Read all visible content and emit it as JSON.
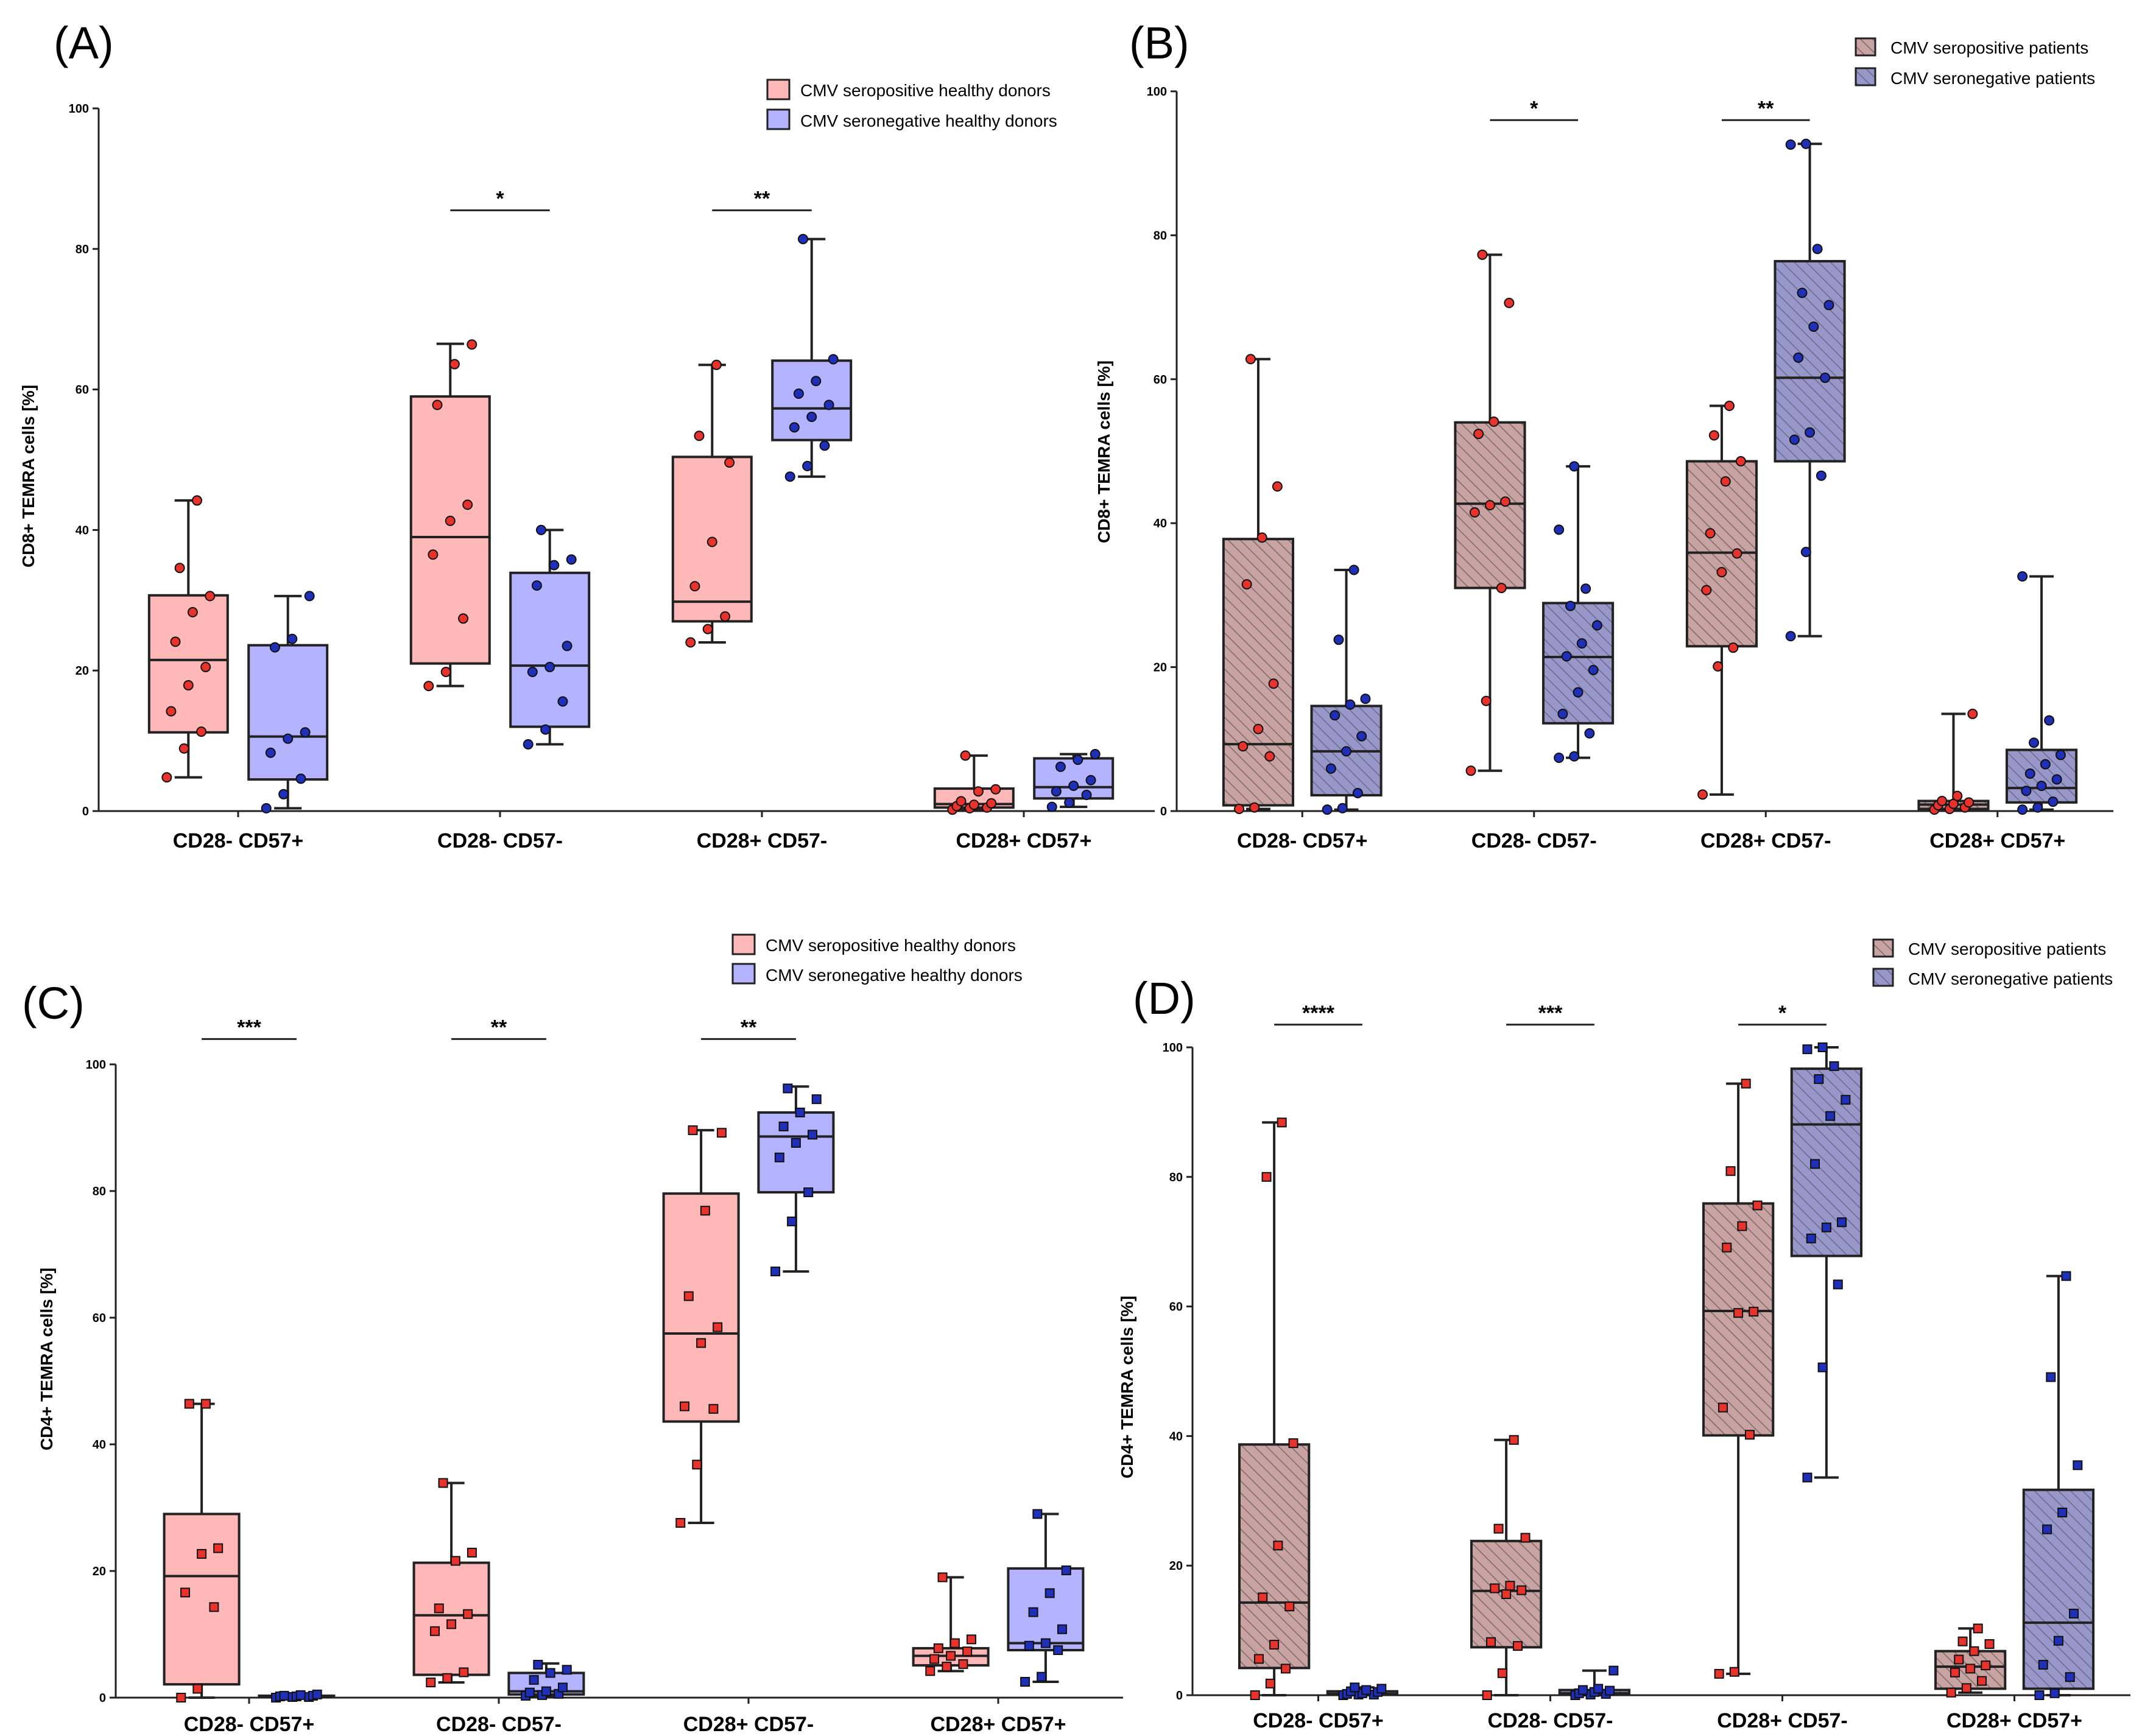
{
  "figure": {
    "colors": {
      "pos_fill": "#ffb8b8",
      "neg_fill": "#b3b3ff",
      "pos_fill_hatched": "#c9a2a2",
      "neg_fill_hatched": "#9797c9",
      "hatch_line": "#7a6a6a",
      "pos_point": "#e8322c",
      "neg_point": "#1f2fb8",
      "line": "#222222"
    }
  },
  "chart_data": [
    {
      "panel": "(A)",
      "type": "box",
      "ylabel": "CD8+ TEMRA cells [%]",
      "ylim": [
        0,
        100
      ],
      "yticks": [
        "0",
        "20",
        "40",
        "60",
        "80",
        "100"
      ],
      "categories": [
        "CD28- CD57+",
        "CD28- CD57-",
        "CD28+ CD57-",
        "CD28+ CD57+"
      ],
      "hatched": false,
      "marker": "circle",
      "legend": [
        "CMV seropositive healthy donors",
        "CMV seronegative healthy donors"
      ],
      "series": [
        {
          "name": "CMV seropositive healthy donors",
          "boxes": [
            {
              "min": 4.8,
              "q1": 11.2,
              "median": 21.5,
              "q3": 30.7,
              "max": 44.2,
              "points": [
                4.8,
                8.9,
                11.3,
                14.2,
                17.9,
                20.5,
                24.1,
                28.3,
                30.6,
                34.6,
                44.2
              ]
            },
            {
              "min": 17.8,
              "q1": 21.0,
              "median": 39.0,
              "q3": 59.0,
              "max": 66.5,
              "points": [
                17.8,
                19.8,
                27.4,
                36.5,
                41.3,
                43.6,
                57.8,
                63.6,
                66.4
              ]
            },
            {
              "min": 24.0,
              "q1": 27.0,
              "median": 29.8,
              "q3": 50.4,
              "max": 63.5,
              "points": [
                24.0,
                25.9,
                27.7,
                32.0,
                38.3,
                49.6,
                53.4,
                63.5
              ]
            },
            {
              "min": 0.2,
              "q1": 0.5,
              "median": 1.0,
              "q3": 3.2,
              "max": 7.9,
              "points": [
                0.2,
                0.4,
                0.5,
                0.7,
                0.9,
                1.1,
                1.4,
                2.8,
                3.1,
                7.9
              ]
            }
          ]
        },
        {
          "name": "CMV seronegative healthy donors",
          "boxes": [
            {
              "min": 0.4,
              "q1": 4.5,
              "median": 10.6,
              "q3": 23.6,
              "max": 30.6,
              "points": [
                0.4,
                2.4,
                4.6,
                8.3,
                10.3,
                11.2,
                23.3,
                24.5,
                30.6
              ]
            },
            {
              "min": 9.5,
              "q1": 12.0,
              "median": 20.7,
              "q3": 33.9,
              "max": 40.0,
              "points": [
                9.5,
                11.6,
                15.6,
                19.8,
                20.5,
                23.5,
                32.1,
                35.0,
                35.8,
                40.0
              ]
            },
            {
              "min": 47.6,
              "q1": 52.8,
              "median": 57.3,
              "q3": 64.1,
              "max": 81.4,
              "points": [
                47.6,
                49.1,
                52.0,
                54.6,
                56.1,
                57.8,
                59.4,
                61.2,
                64.3,
                81.4
              ]
            },
            {
              "min": 0.6,
              "q1": 1.8,
              "median": 3.4,
              "q3": 7.5,
              "max": 8.1,
              "points": [
                0.6,
                1.2,
                2.3,
                2.8,
                3.6,
                4.4,
                6.3,
                7.3,
                8.1
              ]
            }
          ]
        }
      ],
      "significance": [
        {
          "category": 1,
          "label": "*",
          "y": 85.5
        },
        {
          "category": 2,
          "label": "**",
          "y": 85.5
        }
      ]
    },
    {
      "panel": "(B)",
      "type": "box",
      "ylabel": "CD8+ TEMRA cells [%]",
      "ylim": [
        0,
        100
      ],
      "yticks": [
        "0",
        "20",
        "40",
        "60",
        "80",
        "100"
      ],
      "categories": [
        "CD28- CD57+",
        "CD28- CD57-",
        "CD28+ CD57-",
        "CD28+ CD57+"
      ],
      "hatched": true,
      "marker": "circle",
      "legend": [
        "CMV seropositive patients",
        "CMV seronegative patients"
      ],
      "series": [
        {
          "name": "CMV seropositive patients",
          "boxes": [
            {
              "min": 0.3,
              "q1": 0.8,
              "median": 9.3,
              "q3": 37.8,
              "max": 62.8,
              "points": [
                0.3,
                0.5,
                7.6,
                9.0,
                11.4,
                17.7,
                31.5,
                38.0,
                45.1,
                62.8
              ]
            },
            {
              "min": 5.6,
              "q1": 31.0,
              "median": 42.7,
              "q3": 54.0,
              "max": 77.3,
              "points": [
                5.6,
                15.3,
                31.0,
                41.5,
                42.5,
                43.0,
                52.4,
                54.1,
                70.6,
                77.3
              ]
            },
            {
              "min": 2.3,
              "q1": 22.9,
              "median": 35.9,
              "q3": 48.6,
              "max": 56.3,
              "points": [
                2.3,
                20.1,
                22.7,
                30.7,
                33.2,
                35.8,
                38.6,
                45.8,
                48.6,
                52.2,
                56.3
              ]
            },
            {
              "min": 0.2,
              "q1": 0.3,
              "median": 0.9,
              "q3": 1.4,
              "max": 13.5,
              "points": [
                0.2,
                0.3,
                0.5,
                0.8,
                1.0,
                1.2,
                1.4,
                2.1,
                13.5
              ]
            }
          ]
        },
        {
          "name": "CMV seronegative patients",
          "boxes": [
            {
              "min": 0.2,
              "q1": 2.2,
              "median": 8.3,
              "q3": 14.6,
              "max": 33.5,
              "points": [
                0.2,
                0.4,
                2.5,
                5.9,
                8.3,
                10.4,
                13.3,
                14.8,
                15.6,
                23.8,
                33.5
              ]
            },
            {
              "min": 7.4,
              "q1": 12.2,
              "median": 21.4,
              "q3": 28.9,
              "max": 47.9,
              "points": [
                7.4,
                7.6,
                10.8,
                13.5,
                16.5,
                19.6,
                21.5,
                23.3,
                25.8,
                28.5,
                30.9,
                39.1,
                47.9
              ]
            },
            {
              "min": 24.3,
              "q1": 48.6,
              "median": 60.2,
              "q3": 76.4,
              "max": 92.7,
              "points": [
                24.3,
                36.0,
                46.6,
                51.6,
                52.6,
                60.2,
                63.0,
                67.3,
                70.3,
                72.0,
                78.1,
                92.6,
                92.7
              ]
            },
            {
              "min": 0.2,
              "q1": 1.2,
              "median": 3.2,
              "q3": 8.5,
              "max": 32.6,
              "points": [
                0.2,
                0.5,
                1.3,
                2.8,
                3.5,
                4.4,
                5.2,
                6.5,
                7.8,
                9.5,
                12.6,
                32.6
              ]
            }
          ]
        }
      ],
      "significance": [
        {
          "category": 1,
          "label": "*",
          "y": 96.0
        },
        {
          "category": 2,
          "label": "**",
          "y": 96.0
        }
      ]
    },
    {
      "panel": "(C)",
      "type": "box",
      "ylabel": "CD4+ TEMRA cells [%]",
      "ylim": [
        0,
        100
      ],
      "yticks": [
        "0",
        "20",
        "40",
        "60",
        "80",
        "100"
      ],
      "categories": [
        "CD28- CD57+",
        "CD28- CD57-",
        "CD28+ CD57-",
        "CD28+ CD57+"
      ],
      "hatched": false,
      "marker": "square",
      "legend": [
        "CMV seropositive healthy donors",
        "CMV seronegative healthy donors"
      ],
      "series": [
        {
          "name": "CMV seropositive healthy donors",
          "boxes": [
            {
              "min": 0.0,
              "q1": 2.1,
              "median": 19.2,
              "q3": 29.0,
              "max": 46.4,
              "points": [
                0.0,
                1.4,
                14.3,
                16.6,
                22.7,
                23.6,
                46.4,
                46.4
              ]
            },
            {
              "min": 2.4,
              "q1": 3.6,
              "median": 13.0,
              "q3": 21.3,
              "max": 33.9,
              "points": [
                2.4,
                3.1,
                4.0,
                10.5,
                11.6,
                13.2,
                14.1,
                21.6,
                22.9,
                33.9
              ]
            },
            {
              "min": 27.6,
              "q1": 43.6,
              "median": 57.5,
              "q3": 79.6,
              "max": 89.6,
              "points": [
                27.6,
                36.8,
                45.6,
                46.0,
                56.0,
                58.5,
                63.4,
                76.9,
                89.2,
                89.6
              ]
            },
            {
              "min": 4.2,
              "q1": 5.1,
              "median": 6.6,
              "q3": 7.8,
              "max": 19.0,
              "points": [
                4.2,
                4.9,
                5.3,
                6.1,
                6.6,
                7.3,
                7.8,
                8.6,
                9.2,
                19.0
              ]
            }
          ]
        },
        {
          "name": "CMV seronegative healthy donors",
          "boxes": [
            {
              "min": 0.0,
              "q1": 0.1,
              "median": 0.2,
              "q3": 0.3,
              "max": 0.5,
              "points": [
                0.0,
                0.1,
                0.1,
                0.2,
                0.2,
                0.3,
                0.3,
                0.4,
                0.5
              ]
            },
            {
              "min": 0.3,
              "q1": 0.5,
              "median": 1.0,
              "q3": 3.9,
              "max": 5.4,
              "points": [
                0.3,
                0.4,
                0.6,
                0.8,
                1.0,
                1.6,
                2.8,
                3.9,
                4.4,
                5.2
              ]
            },
            {
              "min": 67.3,
              "q1": 79.8,
              "median": 88.6,
              "q3": 92.4,
              "max": 96.5,
              "points": [
                67.3,
                75.2,
                79.8,
                85.3,
                87.6,
                88.9,
                90.2,
                92.4,
                94.5,
                96.2
              ]
            },
            {
              "min": 2.5,
              "q1": 7.5,
              "median": 8.6,
              "q3": 20.4,
              "max": 29.0,
              "points": [
                2.5,
                3.3,
                7.5,
                8.2,
                8.6,
                10.8,
                13.5,
                16.5,
                20.1,
                29.0
              ]
            }
          ]
        }
      ],
      "significance": [
        {
          "category": 0,
          "label": "***",
          "y": 104.0
        },
        {
          "category": 1,
          "label": "**",
          "y": 104.0
        },
        {
          "category": 2,
          "label": "**",
          "y": 104.0
        }
      ]
    },
    {
      "panel": "(D)",
      "type": "box",
      "ylabel": "CD4+ TEMRA cells [%]",
      "ylim": [
        0,
        100
      ],
      "yticks": [
        "0",
        "20",
        "40",
        "60",
        "80",
        "100"
      ],
      "categories": [
        "CD28- CD57+",
        "CD28- CD57-",
        "CD28+ CD57-",
        "CD28+ CD57+"
      ],
      "hatched": true,
      "marker": "square",
      "legend": [
        "CMV seropositive patients",
        "CMV seronegative patients"
      ],
      "series": [
        {
          "name": "CMV seropositive patients",
          "boxes": [
            {
              "min": 0.0,
              "q1": 4.2,
              "median": 14.3,
              "q3": 38.7,
              "max": 88.4,
              "points": [
                0.0,
                1.8,
                4.1,
                5.6,
                7.8,
                13.7,
                15.1,
                23.1,
                38.9,
                80.0,
                88.4
              ]
            },
            {
              "min": 0.0,
              "q1": 7.4,
              "median": 16.1,
              "q3": 23.8,
              "max": 39.4,
              "points": [
                0.0,
                3.4,
                7.6,
                8.2,
                15.6,
                16.2,
                16.5,
                16.9,
                24.3,
                25.7,
                39.4
              ]
            },
            {
              "min": 3.3,
              "q1": 40.1,
              "median": 59.3,
              "q3": 75.9,
              "max": 94.4,
              "points": [
                3.3,
                3.6,
                40.2,
                44.4,
                59.0,
                59.2,
                69.1,
                72.4,
                75.6,
                80.9,
                94.4
              ]
            },
            {
              "min": 0.4,
              "q1": 1.0,
              "median": 4.4,
              "q3": 6.8,
              "max": 10.3,
              "points": [
                0.4,
                1.1,
                2.2,
                3.5,
                4.1,
                4.6,
                5.5,
                6.8,
                7.9,
                8.3,
                10.3
              ]
            }
          ]
        },
        {
          "name": "CMV seronegative patients",
          "boxes": [
            {
              "min": 0.0,
              "q1": 0.1,
              "median": 0.2,
              "q3": 0.6,
              "max": 1.2,
              "points": [
                0.0,
                0.1,
                0.1,
                0.2,
                0.3,
                0.5,
                0.6,
                0.8,
                1.0,
                1.2
              ]
            },
            {
              "min": 0.0,
              "q1": 0.1,
              "median": 0.3,
              "q3": 0.8,
              "max": 3.8,
              "points": [
                0.0,
                0.1,
                0.2,
                0.3,
                0.5,
                0.7,
                0.8,
                1.0,
                3.8
              ]
            },
            {
              "min": 33.6,
              "q1": 67.8,
              "median": 88.1,
              "q3": 96.7,
              "max": 100.0,
              "points": [
                33.6,
                50.6,
                63.4,
                70.5,
                72.2,
                73.0,
                82.0,
                89.4,
                91.9,
                95.1,
                97.1,
                99.7,
                100.0
              ]
            },
            {
              "min": 0.0,
              "q1": 1.0,
              "median": 11.2,
              "q3": 31.7,
              "max": 64.7,
              "points": [
                0.0,
                0.3,
                2.8,
                4.7,
                8.4,
                12.6,
                25.6,
                28.2,
                35.5,
                49.1,
                64.7
              ]
            }
          ]
        }
      ],
      "significance": [
        {
          "category": 0,
          "label": "****",
          "y": 103.5
        },
        {
          "category": 1,
          "label": "***",
          "y": 103.5
        },
        {
          "category": 2,
          "label": "*",
          "y": 103.5
        }
      ]
    }
  ]
}
